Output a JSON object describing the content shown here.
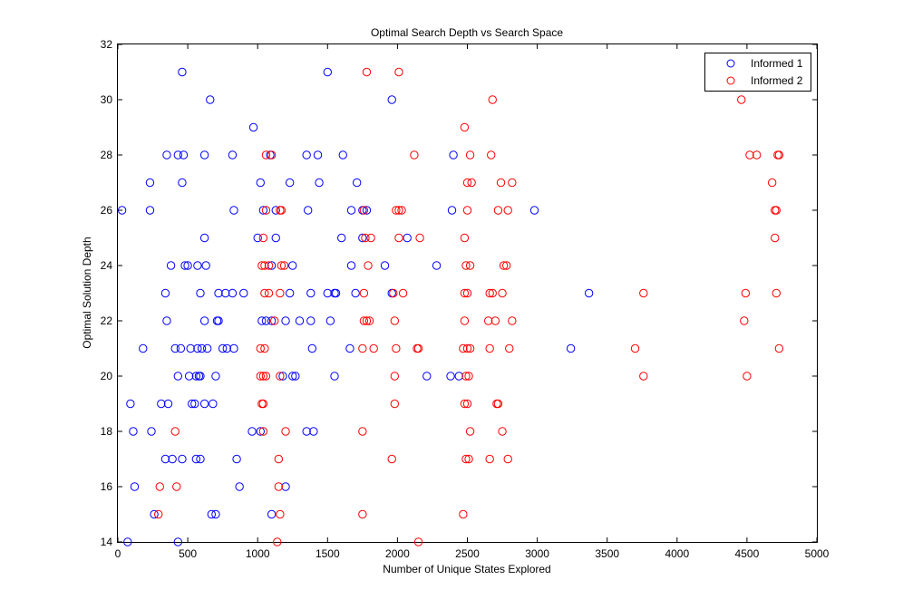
{
  "chart_data": {
    "type": "scatter",
    "title": "Optimal Search Depth vs Search Space",
    "xlabel": "Number of Unique States Explored",
    "ylabel": "Optimal Solution Depth",
    "xlim": [
      0,
      5000
    ],
    "ylim": [
      14,
      32
    ],
    "xticks": [
      "0",
      "500",
      "1000",
      "1500",
      "2000",
      "2500",
      "3000",
      "3500",
      "4000",
      "4500",
      "5000"
    ],
    "yticks": [
      "14",
      "16",
      "18",
      "20",
      "22",
      "24",
      "26",
      "28",
      "30",
      "32"
    ],
    "grid": false,
    "legend_position": "top-right",
    "series": [
      {
        "name": "Informed 1",
        "color": "#0000ff",
        "marker": "circle-open",
        "points": [
          [
            460,
            31
          ],
          [
            1500,
            31
          ],
          [
            660,
            30
          ],
          [
            1960,
            30
          ],
          [
            970,
            29
          ],
          [
            350,
            28
          ],
          [
            430,
            28
          ],
          [
            470,
            28
          ],
          [
            620,
            28
          ],
          [
            820,
            28
          ],
          [
            1090,
            28
          ],
          [
            1350,
            28
          ],
          [
            1430,
            28
          ],
          [
            1610,
            28
          ],
          [
            2400,
            28
          ],
          [
            230,
            27
          ],
          [
            460,
            27
          ],
          [
            1020,
            27
          ],
          [
            1230,
            27
          ],
          [
            1440,
            27
          ],
          [
            1710,
            27
          ],
          [
            30,
            26
          ],
          [
            230,
            26
          ],
          [
            830,
            26
          ],
          [
            1040,
            26
          ],
          [
            1130,
            26
          ],
          [
            1360,
            26
          ],
          [
            1670,
            26
          ],
          [
            1750,
            26
          ],
          [
            1780,
            26
          ],
          [
            2390,
            26
          ],
          [
            2980,
            26
          ],
          [
            620,
            25
          ],
          [
            1000,
            25
          ],
          [
            1130,
            25
          ],
          [
            1600,
            25
          ],
          [
            1750,
            25
          ],
          [
            2070,
            25
          ],
          [
            380,
            24
          ],
          [
            480,
            24
          ],
          [
            500,
            24
          ],
          [
            570,
            24
          ],
          [
            630,
            24
          ],
          [
            1100,
            24
          ],
          [
            1250,
            24
          ],
          [
            1670,
            24
          ],
          [
            1910,
            24
          ],
          [
            2280,
            24
          ],
          [
            340,
            23
          ],
          [
            590,
            23
          ],
          [
            720,
            23
          ],
          [
            770,
            23
          ],
          [
            820,
            23
          ],
          [
            900,
            23
          ],
          [
            1230,
            23
          ],
          [
            1380,
            23
          ],
          [
            1500,
            23
          ],
          [
            1550,
            23
          ],
          [
            1560,
            23
          ],
          [
            1700,
            23
          ],
          [
            1960,
            23
          ],
          [
            3370,
            23
          ],
          [
            350,
            22
          ],
          [
            620,
            22
          ],
          [
            710,
            22
          ],
          [
            720,
            22
          ],
          [
            1030,
            22
          ],
          [
            1060,
            22
          ],
          [
            1100,
            22
          ],
          [
            1200,
            22
          ],
          [
            1300,
            22
          ],
          [
            1380,
            22
          ],
          [
            1520,
            22
          ],
          [
            180,
            21
          ],
          [
            410,
            21
          ],
          [
            450,
            21
          ],
          [
            520,
            21
          ],
          [
            570,
            21
          ],
          [
            600,
            21
          ],
          [
            640,
            21
          ],
          [
            750,
            21
          ],
          [
            780,
            21
          ],
          [
            830,
            21
          ],
          [
            1390,
            21
          ],
          [
            1660,
            21
          ],
          [
            3240,
            21
          ],
          [
            430,
            20
          ],
          [
            510,
            20
          ],
          [
            560,
            20
          ],
          [
            580,
            20
          ],
          [
            590,
            20
          ],
          [
            700,
            20
          ],
          [
            1180,
            20
          ],
          [
            1250,
            20
          ],
          [
            1270,
            20
          ],
          [
            1550,
            20
          ],
          [
            2210,
            20
          ],
          [
            2380,
            20
          ],
          [
            2440,
            20
          ],
          [
            90,
            19
          ],
          [
            310,
            19
          ],
          [
            360,
            19
          ],
          [
            530,
            19
          ],
          [
            550,
            19
          ],
          [
            620,
            19
          ],
          [
            680,
            19
          ],
          [
            110,
            18
          ],
          [
            240,
            18
          ],
          [
            960,
            18
          ],
          [
            1020,
            18
          ],
          [
            1350,
            18
          ],
          [
            1400,
            18
          ],
          [
            340,
            17
          ],
          [
            390,
            17
          ],
          [
            460,
            17
          ],
          [
            560,
            17
          ],
          [
            590,
            17
          ],
          [
            850,
            17
          ],
          [
            120,
            16
          ],
          [
            870,
            16
          ],
          [
            1200,
            16
          ],
          [
            260,
            15
          ],
          [
            670,
            15
          ],
          [
            700,
            15
          ],
          [
            1100,
            15
          ],
          [
            70,
            14
          ],
          [
            430,
            14
          ]
        ]
      },
      {
        "name": "Informed 2",
        "color": "#ff0000",
        "marker": "circle-open",
        "points": [
          [
            1780,
            31
          ],
          [
            2010,
            31
          ],
          [
            2680,
            30
          ],
          [
            4460,
            30
          ],
          [
            2480,
            29
          ],
          [
            1060,
            28
          ],
          [
            1100,
            28
          ],
          [
            2120,
            28
          ],
          [
            2520,
            28
          ],
          [
            2670,
            28
          ],
          [
            4520,
            28
          ],
          [
            4570,
            28
          ],
          [
            4720,
            28
          ],
          [
            4730,
            28
          ],
          [
            2500,
            27
          ],
          [
            2530,
            27
          ],
          [
            2740,
            27
          ],
          [
            2820,
            27
          ],
          [
            4680,
            27
          ],
          [
            1060,
            26
          ],
          [
            1160,
            26
          ],
          [
            1170,
            26
          ],
          [
            1760,
            26
          ],
          [
            1990,
            26
          ],
          [
            2010,
            26
          ],
          [
            2030,
            26
          ],
          [
            2500,
            26
          ],
          [
            2720,
            26
          ],
          [
            2790,
            26
          ],
          [
            4700,
            26
          ],
          [
            4710,
            26
          ],
          [
            1040,
            25
          ],
          [
            1770,
            25
          ],
          [
            1810,
            25
          ],
          [
            2010,
            25
          ],
          [
            2160,
            25
          ],
          [
            2480,
            25
          ],
          [
            4700,
            25
          ],
          [
            1030,
            24
          ],
          [
            1050,
            24
          ],
          [
            1080,
            24
          ],
          [
            1170,
            24
          ],
          [
            1190,
            24
          ],
          [
            1790,
            24
          ],
          [
            2490,
            24
          ],
          [
            2520,
            24
          ],
          [
            2760,
            24
          ],
          [
            2780,
            24
          ],
          [
            1050,
            23
          ],
          [
            1080,
            23
          ],
          [
            1160,
            23
          ],
          [
            1760,
            23
          ],
          [
            1970,
            23
          ],
          [
            2040,
            23
          ],
          [
            2480,
            23
          ],
          [
            2500,
            23
          ],
          [
            2660,
            23
          ],
          [
            2680,
            23
          ],
          [
            2750,
            23
          ],
          [
            3760,
            23
          ],
          [
            4490,
            23
          ],
          [
            4710,
            23
          ],
          [
            1120,
            22
          ],
          [
            1760,
            22
          ],
          [
            1780,
            22
          ],
          [
            1800,
            22
          ],
          [
            1980,
            22
          ],
          [
            2480,
            22
          ],
          [
            2650,
            22
          ],
          [
            2700,
            22
          ],
          [
            2820,
            22
          ],
          [
            4480,
            22
          ],
          [
            1020,
            21
          ],
          [
            1050,
            21
          ],
          [
            1750,
            21
          ],
          [
            1830,
            21
          ],
          [
            1990,
            21
          ],
          [
            2140,
            21
          ],
          [
            2150,
            21
          ],
          [
            2470,
            21
          ],
          [
            2500,
            21
          ],
          [
            2520,
            21
          ],
          [
            2660,
            21
          ],
          [
            2800,
            21
          ],
          [
            3700,
            21
          ],
          [
            4730,
            21
          ],
          [
            1020,
            20
          ],
          [
            1040,
            20
          ],
          [
            1060,
            20
          ],
          [
            1160,
            20
          ],
          [
            1980,
            20
          ],
          [
            2490,
            20
          ],
          [
            2510,
            20
          ],
          [
            3760,
            20
          ],
          [
            4500,
            20
          ],
          [
            1030,
            19
          ],
          [
            1040,
            19
          ],
          [
            1980,
            19
          ],
          [
            2480,
            19
          ],
          [
            2500,
            19
          ],
          [
            2710,
            19
          ],
          [
            2720,
            19
          ],
          [
            410,
            18
          ],
          [
            1040,
            18
          ],
          [
            1200,
            18
          ],
          [
            1750,
            18
          ],
          [
            2520,
            18
          ],
          [
            2750,
            18
          ],
          [
            1150,
            17
          ],
          [
            1960,
            17
          ],
          [
            2490,
            17
          ],
          [
            2510,
            17
          ],
          [
            2660,
            17
          ],
          [
            2790,
            17
          ],
          [
            300,
            16
          ],
          [
            420,
            16
          ],
          [
            1150,
            16
          ],
          [
            290,
            15
          ],
          [
            1160,
            15
          ],
          [
            1750,
            15
          ],
          [
            2470,
            15
          ],
          [
            1140,
            14
          ],
          [
            2150,
            14
          ]
        ]
      }
    ]
  }
}
